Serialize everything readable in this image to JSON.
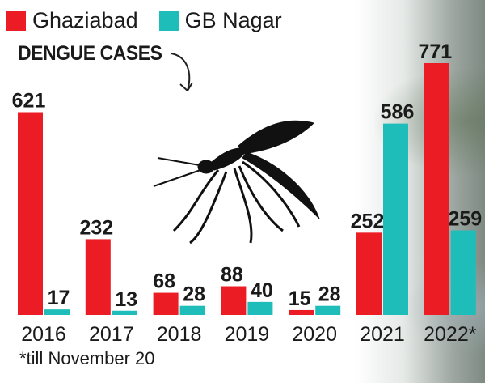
{
  "chart_data": {
    "type": "bar",
    "title": "DENGUE CASES",
    "categories": [
      "2016",
      "2017",
      "2018",
      "2019",
      "2020",
      "2021",
      "2022*"
    ],
    "series": [
      {
        "name": "Ghaziabad",
        "color": "#ec1c24",
        "values": [
          621,
          232,
          68,
          88,
          15,
          252,
          771
        ]
      },
      {
        "name": "GB Nagar",
        "color": "#1fbdb9",
        "values": [
          17,
          13,
          28,
          40,
          28,
          586,
          259
        ]
      }
    ],
    "ylim": [
      0,
      800
    ],
    "grid": false,
    "legend": "top-left",
    "footnote": "*till November 20",
    "annotations": [
      "mosquito-illustration"
    ]
  }
}
